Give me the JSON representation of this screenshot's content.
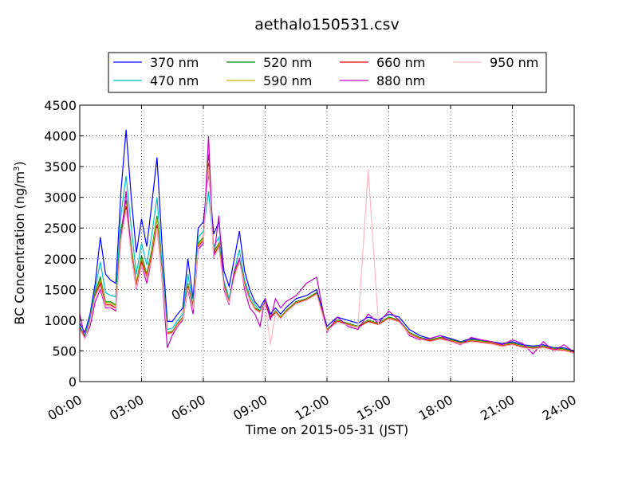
{
  "chart_data": {
    "type": "line",
    "title": "aethalo150531.csv",
    "xlabel": "Time on 2015-05-31 (JST)",
    "ylabel": "BC Concentration (ng/m",
    "ylabel_sup": "3",
    "ylabel_suffix": ")",
    "x_unit": "hours",
    "xlim": [
      0,
      24
    ],
    "ylim": [
      0,
      4500
    ],
    "xticks": [
      0,
      3,
      6,
      9,
      12,
      15,
      18,
      21,
      24
    ],
    "xtick_labels": [
      "00:00",
      "03:00",
      "06:00",
      "09:00",
      "12:00",
      "15:00",
      "18:00",
      "21:00",
      "24:00"
    ],
    "yticks": [
      0,
      500,
      1000,
      1500,
      2000,
      2500,
      3000,
      3500,
      4000,
      4500
    ],
    "ytick_labels": [
      "0",
      "500",
      "1000",
      "1500",
      "2000",
      "2500",
      "3000",
      "3500",
      "4000",
      "4500"
    ],
    "grid": true,
    "legend_position": "top-center, above plot",
    "series": [
      {
        "name": "370 nm",
        "color": "#0000ff",
        "x": [
          0,
          0.25,
          0.5,
          0.75,
          1,
          1.25,
          1.5,
          1.75,
          2,
          2.25,
          2.5,
          2.75,
          3,
          3.25,
          3.5,
          3.75,
          4,
          4.25,
          4.5,
          4.75,
          5,
          5.25,
          5.5,
          5.75,
          6,
          6.25,
          6.5,
          6.75,
          7,
          7.25,
          7.5,
          7.75,
          8,
          8.25,
          8.5,
          8.75,
          9,
          9.25,
          9.5,
          9.75,
          10,
          10.5,
          11,
          11.5,
          12,
          12.5,
          13,
          13.5,
          14,
          14.5,
          15,
          15.5,
          16,
          16.5,
          17,
          17.5,
          18,
          18.5,
          19,
          19.5,
          20,
          20.5,
          21,
          21.5,
          22,
          22.5,
          23,
          23.5,
          24
        ],
        "values": [
          950,
          800,
          1100,
          1600,
          2350,
          1750,
          1650,
          1600,
          3100,
          4100,
          3000,
          2100,
          2650,
          2200,
          2900,
          3650,
          2200,
          980,
          980,
          1100,
          1200,
          2000,
          1350,
          2500,
          2600,
          3400,
          2400,
          2600,
          1800,
          1550,
          2000,
          2450,
          1800,
          1500,
          1300,
          1200,
          1350,
          1100,
          1200,
          1100,
          1200,
          1350,
          1400,
          1500,
          900,
          1050,
          1000,
          950,
          1050,
          1000,
          1100,
          1050,
          850,
          750,
          700,
          750,
          700,
          650,
          700,
          680,
          650,
          620,
          650,
          600,
          580,
          600,
          550,
          550,
          500
        ]
      },
      {
        "name": "470 nm",
        "color": "#00bfbf",
        "x": [
          0,
          0.25,
          0.5,
          0.75,
          1,
          1.25,
          1.5,
          1.75,
          2,
          2.25,
          2.5,
          2.75,
          3,
          3.25,
          3.5,
          3.75,
          4,
          4.25,
          4.5,
          4.75,
          5,
          5.25,
          5.5,
          5.75,
          6,
          6.25,
          6.5,
          6.75,
          7,
          7.25,
          7.5,
          7.75,
          8,
          8.25,
          8.5,
          8.75,
          9,
          9.25,
          9.5,
          9.75,
          10,
          10.5,
          11,
          11.5,
          12,
          12.5,
          13,
          13.5,
          14,
          14.5,
          15,
          15.5,
          16,
          16.5,
          17,
          17.5,
          18,
          18.5,
          19,
          19.5,
          20,
          20.5,
          21,
          21.5,
          22,
          22.5,
          23,
          23.5,
          24
        ],
        "values": [
          900,
          750,
          1050,
          1500,
          1950,
          1450,
          1400,
          1380,
          2700,
          3350,
          2500,
          1750,
          2250,
          1900,
          2400,
          3000,
          1900,
          850,
          870,
          1000,
          1100,
          1750,
          1250,
          2350,
          2450,
          3100,
          2200,
          2350,
          1650,
          1350,
          1800,
          2150,
          1650,
          1400,
          1250,
          1150,
          1300,
          1050,
          1150,
          1050,
          1150,
          1300,
          1350,
          1450,
          850,
          1000,
          950,
          900,
          1000,
          950,
          1050,
          1000,
          800,
          720,
          680,
          720,
          680,
          640,
          680,
          660,
          640,
          600,
          630,
          580,
          560,
          580,
          540,
          530,
          490
        ]
      },
      {
        "name": "520 nm",
        "color": "#008000",
        "x": [
          0,
          0.25,
          0.5,
          0.75,
          1,
          1.25,
          1.5,
          1.75,
          2,
          2.25,
          2.5,
          2.75,
          3,
          3.25,
          3.5,
          3.75,
          4,
          4.25,
          4.5,
          4.75,
          5,
          5.25,
          5.5,
          5.75,
          6,
          6.25,
          6.5,
          6.75,
          7,
          7.25,
          7.5,
          7.75,
          8,
          8.25,
          8.5,
          8.75,
          9,
          9.25,
          9.5,
          9.75,
          10,
          10.5,
          11,
          11.5,
          12,
          12.5,
          13,
          13.5,
          14,
          14.5,
          15,
          15.5,
          16,
          16.5,
          17,
          17.5,
          18,
          18.5,
          19,
          19.5,
          20,
          20.5,
          21,
          21.5,
          22,
          22.5,
          23,
          23.5,
          24
        ],
        "values": [
          880,
          720,
          1000,
          1450,
          1700,
          1300,
          1300,
          1250,
          2450,
          2950,
          2200,
          1600,
          2050,
          1750,
          2150,
          2700,
          1750,
          800,
          820,
          950,
          1050,
          1600,
          1200,
          2250,
          2350,
          3700,
          2100,
          2250,
          1600,
          1300,
          1750,
          2000,
          1600,
          1350,
          1200,
          1150,
          1300,
          1050,
          1150,
          1050,
          1150,
          1300,
          1350,
          1450,
          850,
          1000,
          950,
          900,
          1000,
          950,
          1050,
          1000,
          800,
          720,
          680,
          720,
          680,
          640,
          680,
          660,
          640,
          600,
          630,
          580,
          560,
          580,
          540,
          530,
          490
        ]
      },
      {
        "name": "590 nm",
        "color": "#c8b400",
        "x": [
          0,
          0.25,
          0.5,
          0.75,
          1,
          1.25,
          1.5,
          1.75,
          2,
          2.25,
          2.5,
          2.75,
          3,
          3.25,
          3.5,
          3.75,
          4,
          4.25,
          4.5,
          4.75,
          5,
          5.25,
          5.5,
          5.75,
          6,
          6.25,
          6.5,
          6.75,
          7,
          7.25,
          7.5,
          7.75,
          8,
          8.25,
          8.5,
          8.75,
          9,
          9.25,
          9.5,
          9.75,
          10,
          10.5,
          11,
          11.5,
          12,
          12.5,
          13,
          13.5,
          14,
          14.5,
          15,
          15.5,
          16,
          16.5,
          17,
          17.5,
          18,
          18.5,
          19,
          19.5,
          20,
          20.5,
          21,
          21.5,
          22,
          22.5,
          23,
          23.5,
          24
        ],
        "values": [
          870,
          710,
          990,
          1420,
          1650,
          1280,
          1280,
          1230,
          2400,
          2900,
          2150,
          1580,
          2000,
          1720,
          2100,
          2650,
          1720,
          790,
          810,
          940,
          1040,
          1580,
          1190,
          2230,
          2330,
          3600,
          2080,
          2230,
          1580,
          1290,
          1740,
          1980,
          1590,
          1340,
          1190,
          1140,
          1290,
          1040,
          1140,
          1040,
          1140,
          1290,
          1340,
          1440,
          840,
          990,
          940,
          890,
          990,
          940,
          1040,
          990,
          790,
          710,
          670,
          710,
          670,
          630,
          670,
          650,
          630,
          590,
          620,
          570,
          550,
          570,
          530,
          520,
          480
        ]
      },
      {
        "name": "660 nm",
        "color": "#e00000",
        "x": [
          0,
          0.25,
          0.5,
          0.75,
          1,
          1.25,
          1.5,
          1.75,
          2,
          2.25,
          2.5,
          2.75,
          3,
          3.25,
          3.5,
          3.75,
          4,
          4.25,
          4.5,
          4.75,
          5,
          5.25,
          5.5,
          5.75,
          6,
          6.25,
          6.5,
          6.75,
          7,
          7.25,
          7.5,
          7.75,
          8,
          8.25,
          8.5,
          8.75,
          9,
          9.25,
          9.5,
          9.75,
          10,
          10.5,
          11,
          11.5,
          12,
          12.5,
          13,
          13.5,
          14,
          14.5,
          15,
          15.5,
          16,
          16.5,
          17,
          17.5,
          18,
          18.5,
          19,
          19.5,
          20,
          20.5,
          21,
          21.5,
          22,
          22.5,
          23,
          23.5,
          24
        ],
        "values": [
          860,
          700,
          980,
          1400,
          1600,
          1250,
          1250,
          1200,
          2350,
          2850,
          2100,
          1550,
          1950,
          1700,
          2050,
          2550,
          1700,
          780,
          800,
          930,
          1030,
          1550,
          1180,
          2200,
          2300,
          3550,
          2050,
          2200,
          1560,
          1280,
          1720,
          1960,
          1580,
          1330,
          1180,
          1130,
          1280,
          1030,
          1130,
          1030,
          1130,
          1280,
          1330,
          1430,
          830,
          980,
          930,
          880,
          980,
          930,
          1030,
          980,
          780,
          700,
          660,
          700,
          660,
          620,
          660,
          640,
          620,
          580,
          610,
          560,
          540,
          560,
          520,
          510,
          470
        ]
      },
      {
        "name": "880 nm",
        "color": "#c000c0",
        "x": [
          0,
          0.25,
          0.5,
          0.75,
          1,
          1.25,
          1.5,
          1.75,
          2,
          2.25,
          2.5,
          2.75,
          3,
          3.25,
          3.5,
          3.75,
          4,
          4.25,
          4.5,
          4.75,
          5,
          5.25,
          5.5,
          5.75,
          6,
          6.25,
          6.5,
          6.75,
          7,
          7.25,
          7.5,
          7.75,
          8,
          8.25,
          8.5,
          8.75,
          9,
          9.25,
          9.5,
          9.75,
          10,
          10.5,
          11,
          11.5,
          12,
          12.5,
          13,
          13.5,
          14,
          14.5,
          15,
          15.5,
          16,
          16.5,
          17,
          17.5,
          18,
          18.5,
          19,
          19.5,
          20,
          20.5,
          21,
          21.5,
          22,
          22.5,
          23,
          23.5,
          24
        ],
        "values": [
          1100,
          700,
          900,
          1300,
          1500,
          1200,
          1200,
          1150,
          2300,
          3100,
          2050,
          1500,
          1900,
          1600,
          2000,
          2500,
          1650,
          550,
          760,
          900,
          1000,
          1500,
          1100,
          2150,
          2250,
          4000,
          2000,
          2700,
          1500,
          1250,
          1800,
          2000,
          1500,
          1200,
          1100,
          900,
          1350,
          1000,
          1350,
          1200,
          1300,
          1400,
          1600,
          1700,
          800,
          1050,
          900,
          850,
          1100,
          950,
          1150,
          1000,
          750,
          680,
          700,
          750,
          650,
          600,
          720,
          680,
          650,
          600,
          680,
          620,
          450,
          650,
          500,
          600,
          480
        ]
      },
      {
        "name": "950 nm",
        "color": "#ffb6c1",
        "x": [
          0,
          0.25,
          0.5,
          0.75,
          1,
          1.25,
          1.5,
          1.75,
          2,
          2.25,
          2.5,
          2.75,
          3,
          3.25,
          3.5,
          3.75,
          4,
          4.25,
          4.5,
          4.75,
          5,
          5.25,
          5.5,
          5.75,
          6,
          6.25,
          6.5,
          6.75,
          7,
          7.25,
          7.5,
          7.75,
          8,
          8.25,
          8.5,
          8.75,
          9,
          9.25,
          9.5,
          9.75,
          10,
          10.5,
          11,
          11.5,
          12,
          12.5,
          13,
          13.5,
          14,
          14.5,
          15,
          15.5,
          16,
          16.5,
          17,
          17.5,
          18,
          18.5,
          19,
          19.5,
          20,
          20.5,
          21,
          21.5,
          22,
          22.5,
          23,
          23.5,
          24
        ],
        "values": [
          850,
          690,
          970,
          1380,
          1550,
          1230,
          1230,
          1180,
          2300,
          2800,
          2050,
          1520,
          1900,
          1680,
          2000,
          2500,
          1680,
          770,
          790,
          920,
          1020,
          1520,
          1170,
          2180,
          2280,
          3500,
          2020,
          2180,
          1540,
          1270,
          1700,
          1940,
          1560,
          1320,
          1170,
          1120,
          1270,
          600,
          1120,
          1020,
          1120,
          1270,
          1320,
          1420,
          820,
          970,
          920,
          880,
          3450,
          920,
          1020,
          970,
          770,
          690,
          650,
          690,
          650,
          610,
          650,
          630,
          610,
          570,
          600,
          550,
          530,
          550,
          510,
          500,
          460
        ]
      }
    ]
  }
}
